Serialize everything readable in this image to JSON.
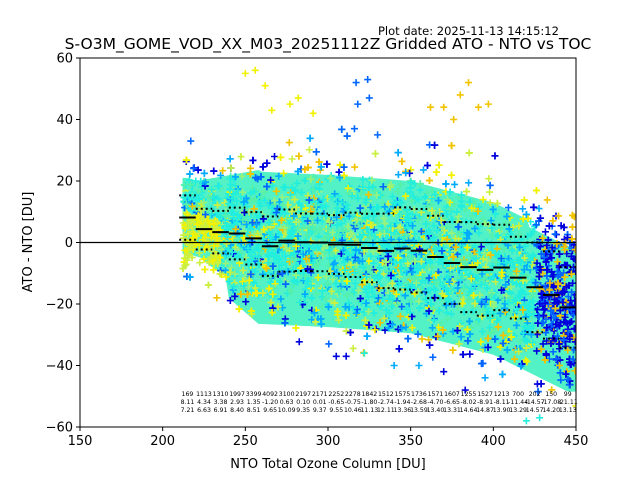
{
  "chart_data": {
    "type": "scatter",
    "title": "S-O3M_GOME_VOD_XX_M03_20251112Z Gridded ATO - NTO vs TOC",
    "plot_date": "Plot date: 2025-11-13 14:15:12",
    "xlabel": "NTO Total Ozone Column [DU]",
    "ylabel": "ATO - NTO [DU]",
    "xlim": [
      150,
      450
    ],
    "ylim": [
      -60,
      60
    ],
    "xticks": [
      150,
      200,
      250,
      300,
      350,
      400,
      450
    ],
    "yticks": [
      -60,
      -40,
      -20,
      0,
      20,
      40,
      60
    ],
    "xtick_labels": [
      "150",
      "200",
      "250",
      "300",
      "350",
      "400",
      "450"
    ],
    "ytick_labels": [
      "−60",
      "−40",
      "−20",
      "0",
      "20",
      "40",
      "60"
    ],
    "grid": false,
    "marker": "+",
    "colormap": [
      "#0000dd",
      "#0066ff",
      "#00aaff",
      "#22eedd",
      "#55f0aa",
      "#99f27a",
      "#ccf040",
      "#f2f200",
      "#f2c400",
      "#ffaa00"
    ],
    "zero_line_color": "#000000",
    "bins": {
      "centers": [
        215,
        225,
        235,
        245,
        255,
        265,
        275,
        285,
        295,
        305,
        315,
        325,
        335,
        345,
        355,
        365,
        375,
        385,
        395,
        405,
        415,
        425,
        435,
        445
      ],
      "counts": [
        "169",
        "1113",
        "1310",
        "1997",
        "3399",
        "4092",
        "3100",
        "2197",
        "2171",
        "2252",
        "2278",
        "1842",
        "1512",
        "1575",
        "1736",
        "1571",
        "1607",
        "1255",
        "1527",
        "1213",
        "700",
        "202",
        "150",
        "99"
      ],
      "means": [
        8.11,
        4.34,
        3.38,
        2.93,
        1.35,
        -1.2,
        0.63,
        0.1,
        0.01,
        -0.65,
        -0.75,
        -1.8,
        -2.74,
        -1.94,
        -2.68,
        -4.7,
        -6.65,
        -8.02,
        -8.91,
        -8.11,
        -11.44,
        -14.57,
        -17.08,
        -21.11
      ],
      "stds": [
        7.21,
        6.63,
        6.91,
        8.4,
        8.51,
        9.65,
        10.09,
        9.35,
        9.37,
        9.55,
        10.46,
        11.13,
        12.11,
        13.36,
        13.59,
        13.4,
        13.31,
        14.64,
        14.87,
        13.9,
        13.29,
        14.57,
        14.2,
        13.13
      ]
    },
    "scatter_cloud": {
      "description": "dense gridded scatter of ATO-NTO differences",
      "x_range": [
        210,
        450
      ],
      "center_trend": [
        [
          215,
          8
        ],
        [
          260,
          1
        ],
        [
          300,
          0
        ],
        [
          350,
          -2
        ],
        [
          400,
          -9
        ],
        [
          445,
          -21
        ]
      ],
      "spread_std": 10,
      "outliers": [
        {
          "x": 217,
          "y": 33,
          "c": 1
        },
        {
          "x": 250,
          "y": 55,
          "c": 7
        },
        {
          "x": 256,
          "y": 56,
          "c": 7
        },
        {
          "x": 262,
          "y": 51,
          "c": 7
        },
        {
          "x": 266,
          "y": 43,
          "c": 7
        },
        {
          "x": 277,
          "y": 45,
          "c": 7
        },
        {
          "x": 282,
          "y": 47,
          "c": 7
        },
        {
          "x": 291,
          "y": 42,
          "c": 7
        },
        {
          "x": 317,
          "y": 52,
          "c": 1
        },
        {
          "x": 324,
          "y": 53,
          "c": 1
        },
        {
          "x": 318,
          "y": 45,
          "c": 1
        },
        {
          "x": 325,
          "y": 47,
          "c": 1
        },
        {
          "x": 316,
          "y": 37,
          "c": 1
        },
        {
          "x": 330,
          "y": 35,
          "c": 1
        },
        {
          "x": 385,
          "y": 52,
          "c": 8
        },
        {
          "x": 380,
          "y": 48,
          "c": 8
        },
        {
          "x": 370,
          "y": 44,
          "c": 8
        },
        {
          "x": 397,
          "y": 45,
          "c": 8
        },
        {
          "x": 391,
          "y": 44,
          "c": 8
        },
        {
          "x": 362,
          "y": 44,
          "c": 8
        },
        {
          "x": 376,
          "y": 40,
          "c": 8
        },
        {
          "x": 305,
          "y": -37,
          "c": 0
        },
        {
          "x": 311,
          "y": -37,
          "c": 0
        },
        {
          "x": 322,
          "y": -36,
          "c": 3
        },
        {
          "x": 340,
          "y": -40,
          "c": 2
        },
        {
          "x": 355,
          "y": -40,
          "c": 2
        },
        {
          "x": 370,
          "y": -42,
          "c": 0
        },
        {
          "x": 383,
          "y": -48,
          "c": 0
        },
        {
          "x": 395,
          "y": -44,
          "c": 2
        },
        {
          "x": 420,
          "y": -58,
          "c": 3
        },
        {
          "x": 428,
          "y": -57,
          "c": 3
        },
        {
          "x": 440,
          "y": -40,
          "c": 8
        },
        {
          "x": 445,
          "y": -35,
          "c": 8
        }
      ]
    }
  }
}
